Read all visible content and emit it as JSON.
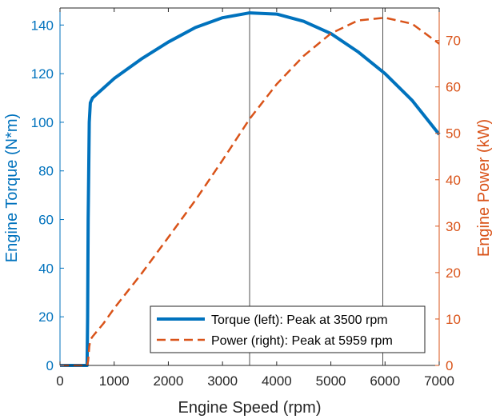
{
  "chart_data": {
    "type": "line",
    "xlabel": "Engine Speed (rpm)",
    "ylabel_left": "Engine Torque (N*m)",
    "ylabel_right": "Engine Power (kW)",
    "xlim": [
      0,
      7000
    ],
    "ylim_left": [
      0,
      147
    ],
    "ylim_right": [
      0,
      77
    ],
    "x_ticks": [
      0,
      1000,
      2000,
      3000,
      4000,
      5000,
      6000,
      7000
    ],
    "y_left_ticks": [
      0,
      20,
      40,
      60,
      80,
      100,
      120,
      140
    ],
    "y_right_ticks": [
      0,
      10,
      20,
      30,
      40,
      50,
      60,
      70
    ],
    "vertical_lines": [
      3500,
      5959
    ],
    "grid": false,
    "legend_position": "bottom-right",
    "colors": {
      "torque": "#0072BD",
      "power": "#D95319",
      "axis_left": "#0072BD",
      "axis_right": "#D95319",
      "axis_x": "#262626"
    },
    "series": [
      {
        "name": "Torque (left): Peak at 3500 rpm",
        "axis": "left",
        "style": "solid",
        "x": [
          0,
          500,
          510,
          520,
          540,
          560,
          600,
          700,
          800,
          1000,
          1500,
          2000,
          2500,
          3000,
          3500,
          4000,
          4500,
          5000,
          5500,
          6000,
          6500,
          7000
        ],
        "y": [
          0,
          0,
          20,
          60,
          100,
          108,
          110,
          112,
          114,
          118,
          126,
          133,
          139,
          143,
          145,
          144.5,
          141.5,
          136.5,
          129,
          120,
          109,
          95
        ]
      },
      {
        "name": "Power (right): Peak at 5959 rpm",
        "axis": "right",
        "style": "dashed",
        "x": [
          0,
          500,
          520,
          540,
          560,
          600,
          800,
          1000,
          1500,
          2000,
          2500,
          3000,
          3500,
          4000,
          4500,
          5000,
          5500,
          6000,
          6500,
          7000
        ],
        "y": [
          0,
          0,
          1,
          4,
          5.5,
          6.2,
          9,
          12.3,
          19.7,
          27.6,
          35.6,
          44.2,
          53.1,
          60.6,
          66.7,
          71.5,
          74.3,
          74.9,
          73.6,
          69.3
        ]
      }
    ]
  }
}
